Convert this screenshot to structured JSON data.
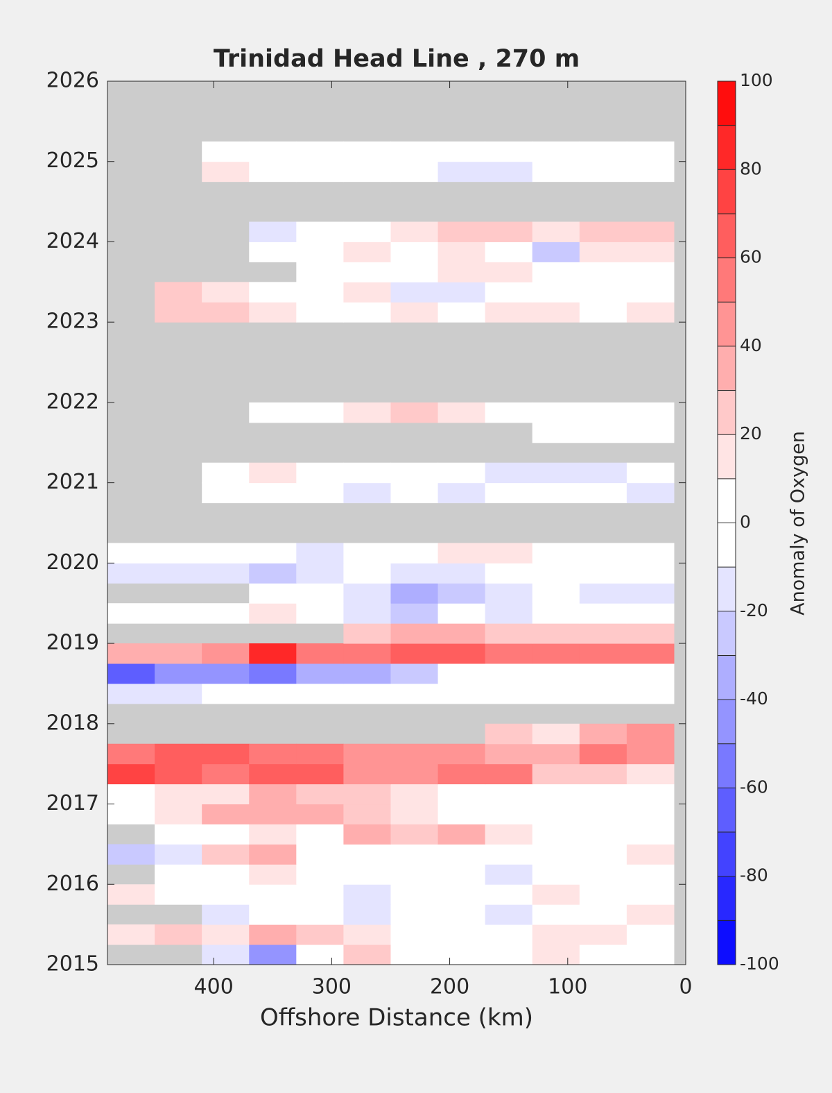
{
  "chart_data": {
    "type": "contour",
    "title": "Trinidad Head Line , 270 m",
    "xlabel": "Offshore Distance (km)",
    "colorbar_label": "Anomaly of Oxygen",
    "xlim": [
      490,
      0
    ],
    "xticks": [
      400,
      300,
      200,
      100,
      0
    ],
    "ylim": [
      2015,
      2026
    ],
    "yticks": [
      2015,
      2016,
      2017,
      2018,
      2019,
      2020,
      2021,
      2022,
      2023,
      2024,
      2025,
      2026
    ],
    "clim": [
      -100,
      100
    ],
    "cticks": [
      -100,
      -80,
      -60,
      -40,
      -20,
      0,
      20,
      40,
      60,
      80,
      100
    ],
    "levels": [
      -100,
      -90,
      -80,
      -70,
      -60,
      -50,
      -40,
      -30,
      -20,
      -10,
      0,
      10,
      20,
      30,
      40,
      50,
      60,
      70,
      80,
      90,
      100
    ],
    "positive_color": "#ff0000",
    "negative_color": "#0000ff",
    "zero_color": "#ffffff",
    "nan_color": "#cccccc",
    "x": [
      470,
      430,
      390,
      350,
      310,
      270,
      230,
      190,
      150,
      110,
      70,
      30
    ],
    "y": [
      2015.125,
      2015.375,
      2015.625,
      2015.875,
      2016.125,
      2016.375,
      2016.625,
      2016.875,
      2017.125,
      2017.375,
      2017.625,
      2017.875,
      2018.125,
      2018.375,
      2018.625,
      2018.875,
      2019.125,
      2019.375,
      2019.625,
      2019.875,
      2020.125,
      2020.375,
      2020.625,
      2020.875,
      2021.125,
      2021.375,
      2021.625,
      2021.875,
      2022.125,
      2022.375,
      2022.625,
      2022.875,
      2023.125,
      2023.375,
      2023.625,
      2023.875,
      2024.125,
      2024.375,
      2024.625,
      2024.875,
      2025.125
    ],
    "values": [
      [
        null,
        null,
        -20,
        -50,
        0,
        20,
        -10,
        -10,
        0,
        10,
        0,
        0
      ],
      [
        10,
        20,
        10,
        30,
        20,
        10,
        0,
        0,
        0,
        10,
        10,
        0
      ],
      [
        null,
        null,
        -20,
        0,
        -10,
        -20,
        -10,
        -10,
        -20,
        0,
        0,
        10
      ],
      [
        10,
        0,
        -10,
        0,
        -10,
        -20,
        -10,
        0,
        -10,
        10,
        0,
        0
      ],
      [
        null,
        0,
        0,
        10,
        0,
        -10,
        0,
        -10,
        -20,
        -10,
        0,
        -10
      ],
      [
        -30,
        -20,
        20,
        30,
        0,
        0,
        0,
        -10,
        0,
        0,
        0,
        10
      ],
      [
        null,
        -10,
        0,
        10,
        0,
        30,
        20,
        30,
        10,
        0,
        0,
        -10
      ],
      [
        0,
        10,
        30,
        30,
        30,
        20,
        10,
        0,
        0,
        -10,
        -10,
        -10
      ],
      [
        0,
        10,
        10,
        30,
        20,
        20,
        10,
        0,
        0,
        0,
        0,
        0
      ],
      [
        70,
        60,
        50,
        60,
        60,
        40,
        40,
        50,
        50,
        20,
        20,
        10
      ],
      [
        50,
        60,
        60,
        50,
        50,
        40,
        40,
        40,
        30,
        30,
        50,
        40
      ],
      [
        null,
        null,
        null,
        null,
        null,
        null,
        null,
        null,
        20,
        10,
        30,
        40
      ],
      [
        null,
        null,
        null,
        null,
        null,
        null,
        null,
        null,
        null,
        null,
        null,
        null
      ],
      [
        -20,
        -20,
        -10,
        -10,
        -10,
        0,
        -10,
        0,
        -10,
        -10,
        0,
        0
      ],
      [
        -70,
        -50,
        -50,
        -60,
        -40,
        -40,
        -30,
        -10,
        -10,
        -10,
        -10,
        -10
      ],
      [
        30,
        30,
        40,
        80,
        50,
        50,
        60,
        60,
        50,
        50,
        50,
        50
      ],
      [
        null,
        null,
        null,
        null,
        null,
        20,
        30,
        30,
        20,
        20,
        20,
        20
      ],
      [
        0,
        0,
        0,
        10,
        0,
        -20,
        -30,
        -10,
        -20,
        0,
        -10,
        -10
      ],
      [
        null,
        null,
        null,
        -10,
        -10,
        -20,
        -40,
        -30,
        -20,
        -10,
        -20,
        -20
      ],
      [
        -20,
        -20,
        -20,
        -30,
        -20,
        -10,
        -20,
        -20,
        -10,
        -10,
        -10,
        0
      ],
      [
        -10,
        -10,
        0,
        -10,
        -20,
        -10,
        0,
        10,
        10,
        0,
        0,
        0
      ],
      [
        null,
        null,
        null,
        null,
        null,
        null,
        null,
        null,
        null,
        null,
        null,
        null
      ],
      [
        null,
        null,
        null,
        null,
        null,
        null,
        null,
        null,
        null,
        null,
        null,
        null
      ],
      [
        null,
        null,
        -10,
        0,
        -10,
        -20,
        -10,
        -20,
        -10,
        -10,
        -10,
        -20
      ],
      [
        null,
        null,
        0,
        10,
        0,
        -10,
        -10,
        -10,
        -20,
        -20,
        -20,
        -10
      ],
      [
        null,
        null,
        null,
        null,
        null,
        null,
        null,
        null,
        null,
        null,
        null,
        null
      ],
      [
        null,
        null,
        null,
        null,
        null,
        null,
        null,
        null,
        null,
        0,
        -10,
        -10
      ],
      [
        null,
        null,
        null,
        0,
        0,
        10,
        20,
        10,
        0,
        0,
        0,
        -10
      ],
      [
        null,
        null,
        null,
        null,
        null,
        null,
        null,
        null,
        null,
        null,
        null,
        null
      ],
      [
        null,
        null,
        null,
        null,
        null,
        null,
        null,
        null,
        null,
        null,
        null,
        null
      ],
      [
        null,
        null,
        null,
        null,
        null,
        null,
        null,
        null,
        null,
        null,
        null,
        null
      ],
      [
        null,
        null,
        null,
        null,
        null,
        null,
        null,
        null,
        null,
        null,
        null,
        null
      ],
      [
        null,
        20,
        20,
        10,
        0,
        -10,
        10,
        0,
        10,
        10,
        0,
        10
      ],
      [
        null,
        20,
        10,
        -10,
        0,
        10,
        -20,
        -20,
        -10,
        -10,
        0,
        -10
      ],
      [
        null,
        null,
        null,
        null,
        -10,
        -10,
        0,
        10,
        10,
        -10,
        0,
        0
      ],
      [
        null,
        null,
        null,
        -10,
        0,
        10,
        0,
        10,
        0,
        -30,
        10,
        10
      ],
      [
        null,
        null,
        null,
        -20,
        -10,
        0,
        10,
        20,
        20,
        10,
        20,
        20
      ],
      [
        null,
        null,
        null,
        null,
        null,
        null,
        null,
        null,
        null,
        null,
        null,
        null
      ],
      [
        null,
        null,
        null,
        null,
        null,
        null,
        null,
        null,
        null,
        null,
        null,
        null
      ],
      [
        null,
        null,
        10,
        0,
        -10,
        -10,
        -10,
        -20,
        -20,
        -10,
        -10,
        0
      ],
      [
        null,
        null,
        -10,
        0,
        -10,
        0,
        -10,
        -10,
        0,
        -10,
        -10,
        -10
      ]
    ]
  }
}
